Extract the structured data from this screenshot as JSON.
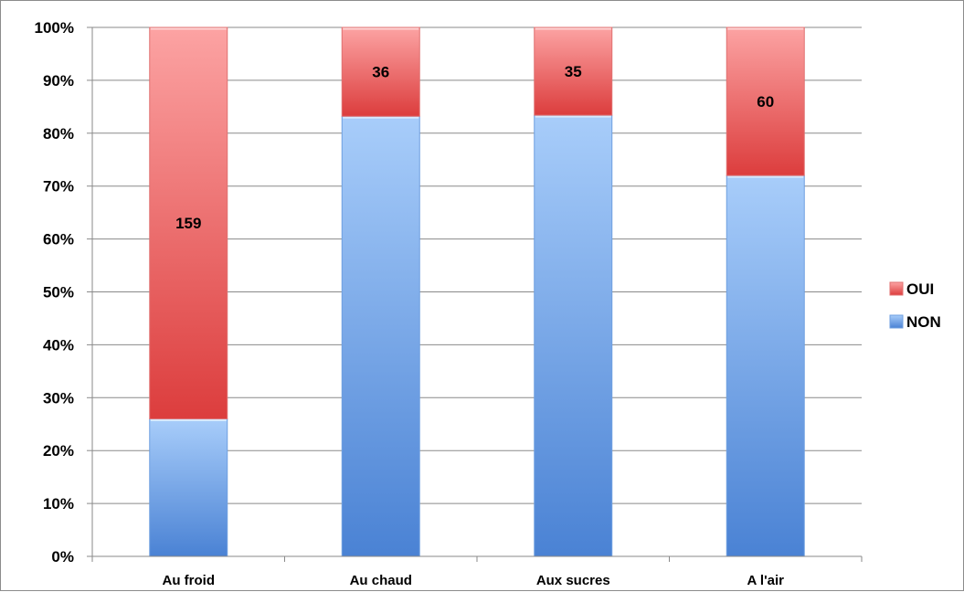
{
  "chart_data": {
    "type": "bar",
    "stacked": true,
    "normalized": true,
    "title": "",
    "xlabel": "",
    "ylabel": "",
    "categories": [
      "Au froid",
      "Au chaud",
      "Aux sucres",
      "A l'air"
    ],
    "series": [
      {
        "name": "NON",
        "color": "#5b8fd8",
        "percent": [
          26,
          83.2,
          83.4,
          72
        ],
        "labels": [
          "",
          "",
          "",
          ""
        ]
      },
      {
        "name": "OUI",
        "color": "#e05252",
        "percent": [
          74,
          16.8,
          16.6,
          28
        ],
        "labels": [
          "159",
          "36",
          "35",
          "60"
        ]
      }
    ],
    "y_ticks": [
      "0%",
      "10%",
      "20%",
      "30%",
      "40%",
      "50%",
      "60%",
      "70%",
      "80%",
      "90%",
      "100%"
    ],
    "ylim": [
      0,
      100
    ],
    "grid": true,
    "legend_position": "right",
    "legend_entries": [
      "OUI",
      "NON"
    ]
  }
}
